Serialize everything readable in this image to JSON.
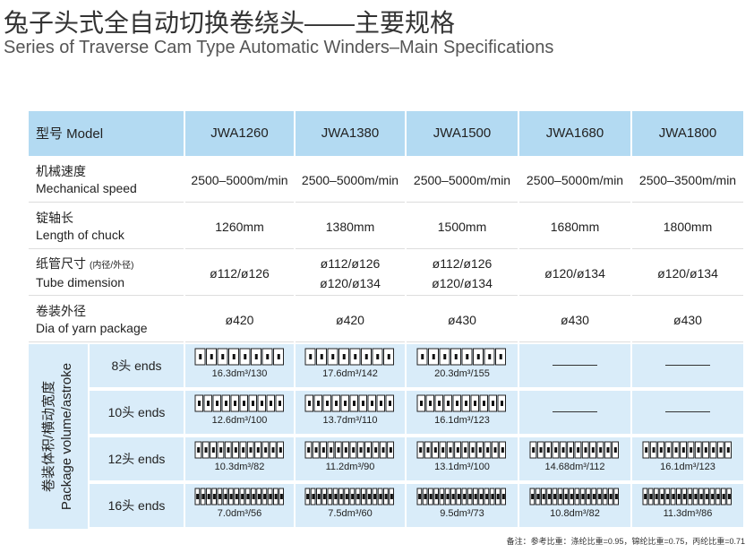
{
  "header": {
    "title": "兔子头式全自动切换卷绕头——主要规格",
    "subtitle": "Series of Traverse Cam Type Automatic Winders–Main Specifications"
  },
  "table": {
    "columns": [
      "型号 Model",
      "JWA1260",
      "JWA1380",
      "JWA1500",
      "JWA1680",
      "JWA1800"
    ],
    "rows": [
      {
        "label_zh": "机械速度",
        "label_en": "Mechanical speed",
        "cells": [
          [
            "2500–5000m/min"
          ],
          [
            "2500–5000m/min"
          ],
          [
            "2500–5000m/min"
          ],
          [
            "2500–5000m/min"
          ],
          [
            "2500–3500m/min"
          ]
        ]
      },
      {
        "label_zh": "锭轴长",
        "label_en": "Length of chuck",
        "cells": [
          [
            "1260mm"
          ],
          [
            "1380mm"
          ],
          [
            "1500mm"
          ],
          [
            "1680mm"
          ],
          [
            "1800mm"
          ]
        ]
      },
      {
        "label_zh": "纸管尺寸",
        "label_note": "(内径/外径)",
        "label_en": "Tube dimension",
        "cells": [
          [
            "ø112/ø126"
          ],
          [
            "ø112/ø126",
            "ø120/ø134"
          ],
          [
            "ø112/ø126",
            "ø120/ø134"
          ],
          [
            "ø120/ø134"
          ],
          [
            "ø120/ø134"
          ]
        ]
      },
      {
        "label_zh": "卷装外径",
        "label_en": "Dia of yarn package",
        "cells": [
          [
            "ø420"
          ],
          [
            "ø420"
          ],
          [
            "ø430"
          ],
          [
            "ø430"
          ],
          [
            "ø430"
          ]
        ]
      }
    ],
    "package": {
      "label_zh": "卷装体积/横动宽度",
      "label_en": "Package volume/astroke",
      "rows": [
        {
          "label": "8头 ends",
          "cells": [
            "16.3dm³/130",
            "17.6dm³/142",
            "20.3dm³/155",
            null,
            null
          ]
        },
        {
          "label": "10头 ends",
          "cells": [
            "12.6dm³/100",
            "13.7dm³/110",
            "16.1dm³/123",
            null,
            null
          ]
        },
        {
          "label": "12头 ends",
          "cells": [
            "10.3dm³/82",
            "11.2dm³/90",
            "13.1dm³/100",
            "14.68dm³/112",
            "16.1dm³/123"
          ]
        },
        {
          "label": "16头 ends",
          "cells": [
            "7.0dm³/56",
            "7.5dm³/60",
            "9.5dm³/73",
            "10.8dm³/82",
            "11.3dm³/86"
          ]
        }
      ]
    }
  },
  "note": "备注：参考比重：涤纶比重=0.95，锦纶比重=0.75，丙纶比重=0.71"
}
